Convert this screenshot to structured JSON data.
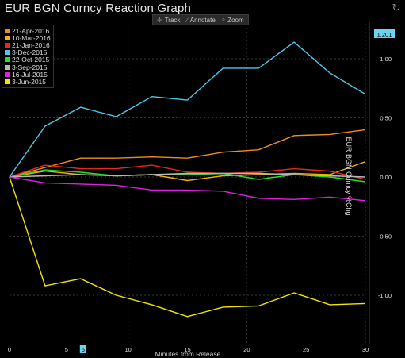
{
  "title": "EUR BGN Curncy Reaction Graph",
  "toolbar": {
    "track": "Track",
    "annotate": "Annotate",
    "zoom": "Zoom"
  },
  "colors": {
    "background": "#000000",
    "grid": "#333333",
    "last_value_tag": "#6fd3f0"
  },
  "chart_data": {
    "type": "line",
    "xlabel": "Minutes from Release",
    "ylabel": "EUR BGN Curncy %Chg",
    "xlim": [
      0,
      30
    ],
    "ylim": [
      -1.45,
      1.45
    ],
    "x_ticks": [
      "0",
      "5",
      "6",
      "10",
      "15",
      "20",
      "25",
      "30"
    ],
    "y_ticks": [
      "1.00",
      "0.50",
      "0.00",
      "-0.50",
      "-1.00"
    ],
    "highlighted_x_tick": "6",
    "last_value_tag": "1.201",
    "grid": true,
    "legend_placement": "top-left",
    "series": [
      {
        "name": "21-Apr-2016",
        "color": "#f08c1e",
        "x": [
          0,
          3,
          6,
          9,
          12,
          15,
          18,
          21,
          24,
          27,
          30
        ],
        "y": [
          0.0,
          0.08,
          0.16,
          0.16,
          0.17,
          0.16,
          0.21,
          0.23,
          0.35,
          0.36,
          0.4
        ]
      },
      {
        "name": "10-Mar-2016",
        "color": "#f3b300",
        "x": [
          0,
          3,
          6,
          9,
          12,
          15,
          18,
          21,
          24,
          27,
          30
        ],
        "y": [
          0.0,
          0.05,
          0.02,
          0.01,
          0.02,
          -0.03,
          0.01,
          0.02,
          0.03,
          0.02,
          0.13
        ]
      },
      {
        "name": "21-Jan-2016",
        "color": "#e8281e",
        "x": [
          0,
          3,
          6,
          9,
          12,
          15,
          18,
          21,
          24,
          27,
          30
        ],
        "y": [
          0.0,
          0.1,
          0.07,
          0.07,
          0.1,
          0.04,
          0.03,
          0.04,
          0.07,
          0.05,
          -0.02
        ]
      },
      {
        "name": "3-Dec-2015",
        "color": "#4fc8f0",
        "x": [
          0,
          3,
          6,
          9,
          12,
          15,
          18,
          21,
          24,
          27,
          30
        ],
        "y": [
          0.0,
          0.43,
          0.59,
          0.51,
          0.68,
          0.65,
          0.92,
          0.92,
          1.14,
          0.88,
          0.7
        ]
      },
      {
        "name": "22-Oct-2015",
        "color": "#2adc2a",
        "x": [
          0,
          3,
          6,
          9,
          12,
          15,
          18,
          21,
          24,
          27,
          30
        ],
        "y": [
          0.0,
          0.06,
          0.04,
          0.01,
          0.02,
          0.02,
          0.03,
          -0.02,
          0.02,
          0.0,
          -0.04
        ]
      },
      {
        "name": "3-Sep-2015",
        "color": "#b8b8b8",
        "x": [
          0,
          3,
          6,
          9,
          12,
          15,
          18,
          21,
          24,
          27,
          30
        ],
        "y": [
          0.0,
          0.01,
          0.02,
          0.01,
          0.02,
          0.03,
          0.03,
          0.03,
          0.02,
          0.01,
          0.0
        ]
      },
      {
        "name": "16-Jul-2015",
        "color": "#e020e0",
        "x": [
          0,
          3,
          6,
          9,
          12,
          15,
          18,
          21,
          24,
          27,
          30
        ],
        "y": [
          0.0,
          -0.05,
          -0.06,
          -0.07,
          -0.11,
          -0.11,
          -0.12,
          -0.18,
          -0.19,
          -0.17,
          -0.2
        ]
      },
      {
        "name": "3-Jun-2015",
        "color": "#f2e600",
        "x": [
          0,
          3,
          6,
          9,
          12,
          15,
          18,
          21,
          24,
          27,
          30
        ],
        "y": [
          0.0,
          -0.92,
          -0.86,
          -1.0,
          -1.08,
          -1.18,
          -1.1,
          -1.09,
          -0.98,
          -1.08,
          -1.07
        ]
      }
    ]
  }
}
